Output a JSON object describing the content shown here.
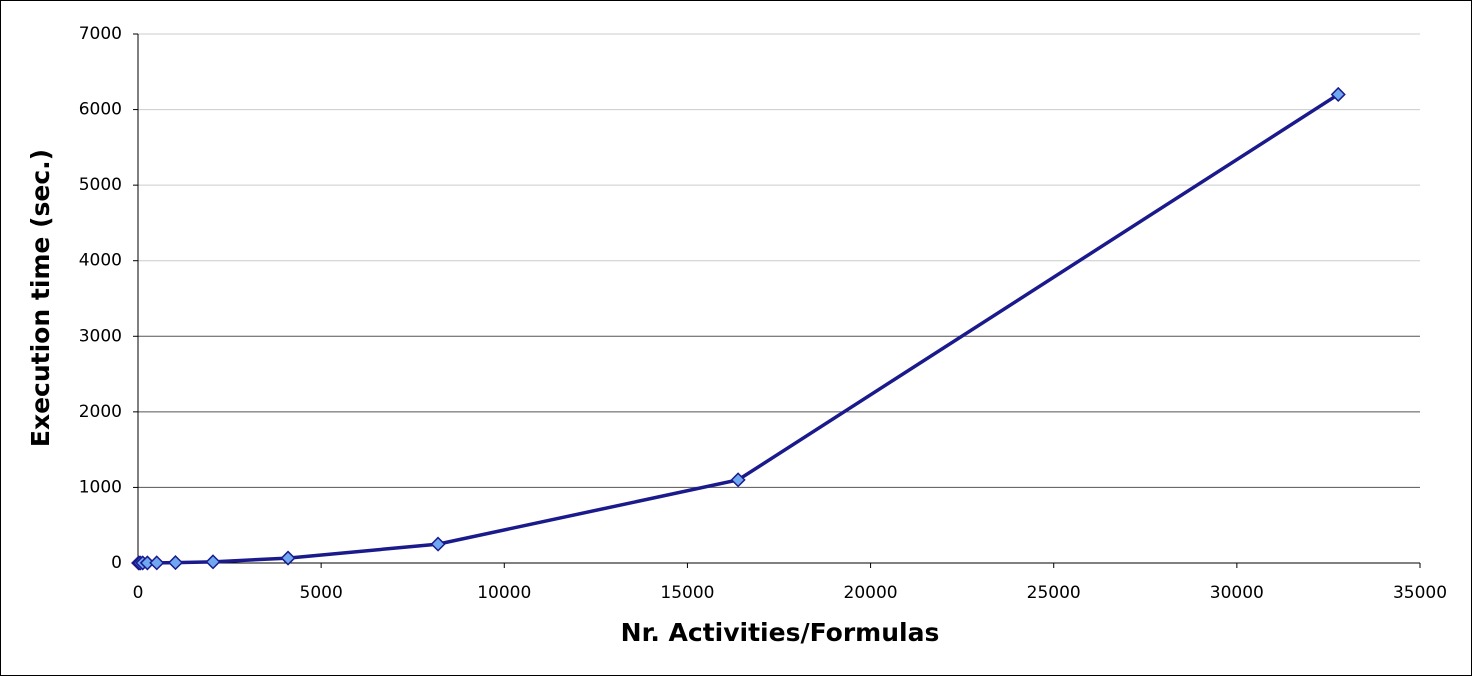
{
  "chart_data": {
    "type": "line",
    "x_label": "Nr. Activities/Formulas",
    "y_label": "Execution time (sec.)",
    "x": [
      16,
      32,
      64,
      128,
      256,
      512,
      1024,
      2048,
      4096,
      8192,
      16384,
      32768
    ],
    "values": [
      0,
      0,
      0,
      1,
      1,
      2,
      5,
      15,
      65,
      250,
      1100,
      6200
    ],
    "color": "#1a1a8c",
    "marker_color": "#6fa8f0",
    "xlim": [
      0,
      35000
    ],
    "xticks": [
      0,
      5000,
      10000,
      15000,
      20000,
      25000,
      30000,
      35000
    ],
    "ylim": [
      0,
      7000
    ],
    "yticks": [
      0,
      1000,
      2000,
      3000,
      4000,
      5000,
      6000,
      7000
    ],
    "grid": true
  }
}
